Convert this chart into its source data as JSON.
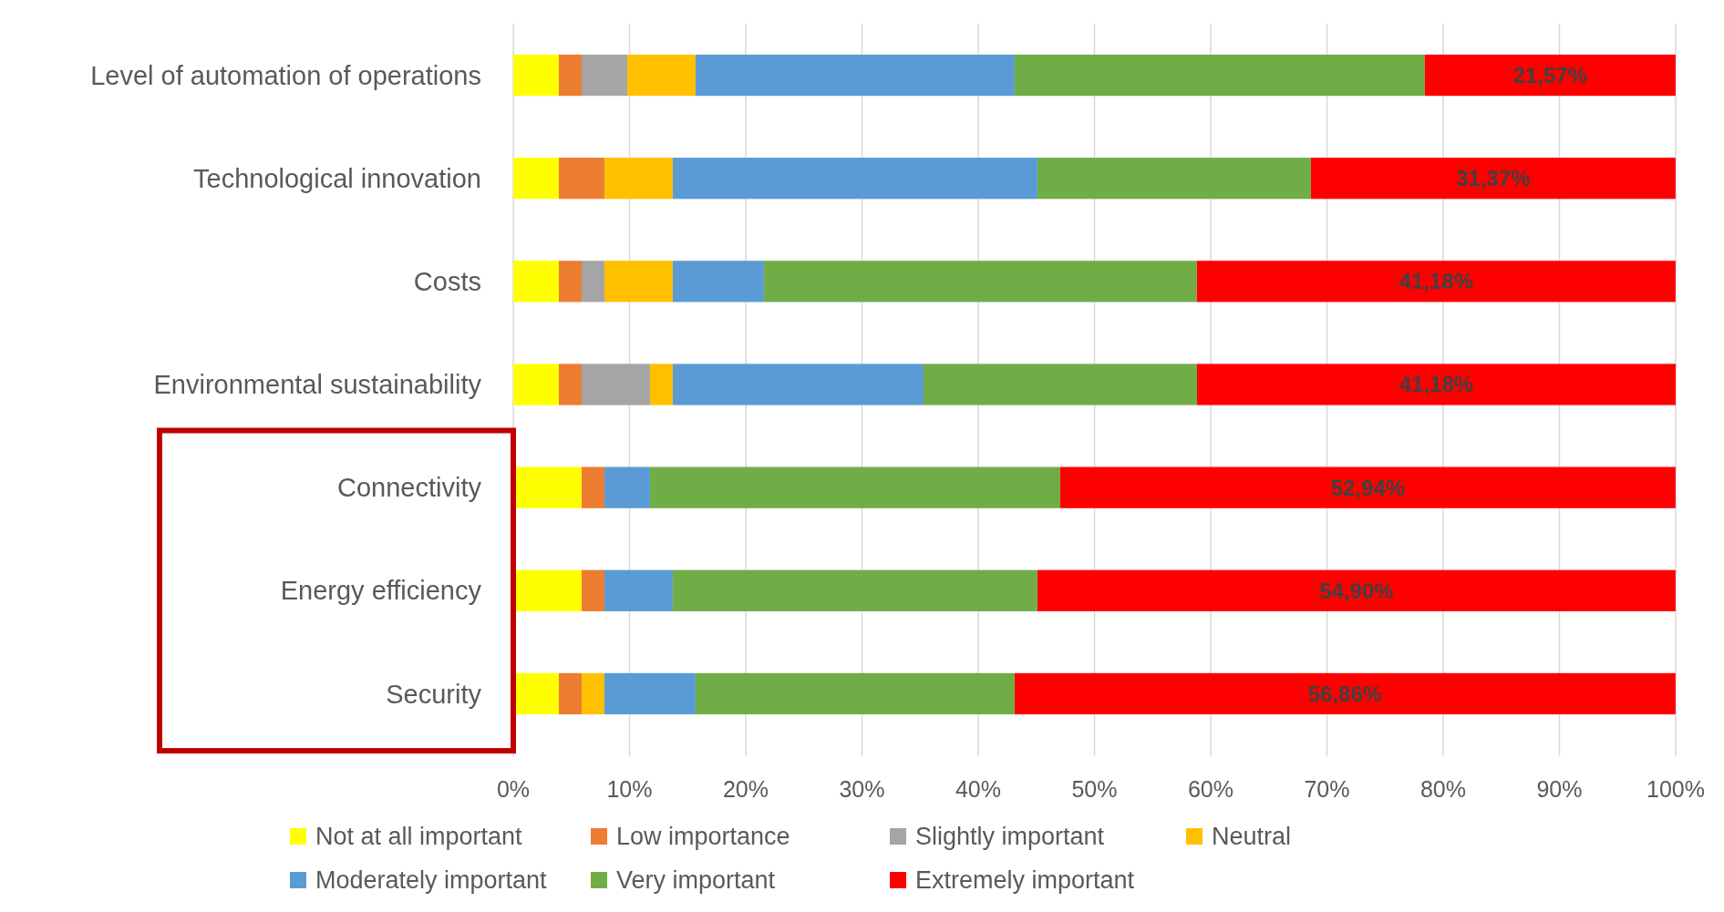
{
  "chart_data": {
    "type": "bar",
    "orientation": "horizontal",
    "stacked": true,
    "categories": [
      "Level of automation of operations",
      "Technological innovation",
      "Costs",
      "Environmental sustainability",
      "Connectivity",
      "Energy efficiency",
      "Security"
    ],
    "series": [
      {
        "name": "Not at all important",
        "color": "#ffff00",
        "values": [
          3.92,
          3.92,
          3.92,
          3.92,
          5.88,
          5.88,
          3.92
        ]
      },
      {
        "name": "Low importance",
        "color": "#ed7d31",
        "values": [
          1.96,
          3.92,
          1.96,
          1.96,
          1.96,
          1.96,
          1.96
        ]
      },
      {
        "name": "Slightly important",
        "color": "#a5a5a5",
        "values": [
          3.92,
          0,
          1.96,
          5.88,
          0,
          0,
          0
        ]
      },
      {
        "name": "Neutral",
        "color": "#ffc000",
        "values": [
          5.88,
          5.88,
          5.88,
          1.96,
          0,
          0,
          1.96
        ]
      },
      {
        "name": "Moderately important",
        "color": "#5b9bd5",
        "values": [
          27.45,
          31.37,
          7.84,
          21.57,
          3.92,
          5.88,
          7.84
        ]
      },
      {
        "name": "Very important",
        "color": "#70ad47",
        "values": [
          35.29,
          23.53,
          37.25,
          23.53,
          35.29,
          31.37,
          27.45
        ]
      },
      {
        "name": "Extremely important",
        "color": "#ff0000",
        "values": [
          21.57,
          31.37,
          41.18,
          41.18,
          52.94,
          54.9,
          56.86
        ],
        "value_labels": [
          "21,57%",
          "31,37%",
          "41,18%",
          "41,18%",
          "52,94%",
          "54,90%",
          "56,86%"
        ]
      }
    ],
    "xlim": [
      0,
      100
    ],
    "xticks": [
      {
        "value": 0,
        "label": "0%"
      },
      {
        "value": 10,
        "label": "10%"
      },
      {
        "value": 20,
        "label": "20%"
      },
      {
        "value": 30,
        "label": "30%"
      },
      {
        "value": 40,
        "label": "40%"
      },
      {
        "value": 50,
        "label": "50%"
      },
      {
        "value": 60,
        "label": "60%"
      },
      {
        "value": 70,
        "label": "70%"
      },
      {
        "value": 80,
        "label": "80%"
      },
      {
        "value": 90,
        "label": "90%"
      },
      {
        "value": 100,
        "label": "100%"
      }
    ],
    "grid": "x",
    "legend": "bottom"
  }
}
